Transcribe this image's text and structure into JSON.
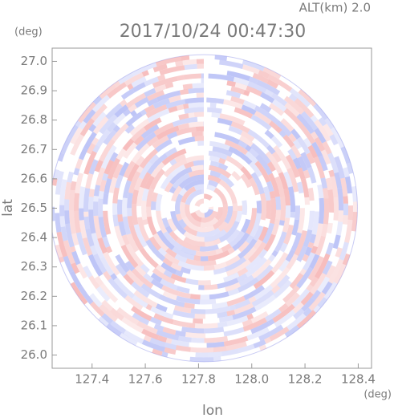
{
  "chart_data": {
    "type": "ppi",
    "title": "2017/10/24 00:47:30",
    "subtitle": "ALT(km) 2.0",
    "x_label": "lon",
    "y_label": "lat",
    "x_unit": "(deg)",
    "y_unit": "(deg)",
    "xlim": [
      127.25,
      128.45
    ],
    "ylim": [
      25.955,
      27.045
    ],
    "xticks": [
      {
        "value": 127.4,
        "label": "127.4"
      },
      {
        "value": 127.6,
        "label": "127.6"
      },
      {
        "value": 127.8,
        "label": "127.8"
      },
      {
        "value": 128.0,
        "label": "128.0"
      },
      {
        "value": 128.2,
        "label": "128.2"
      },
      {
        "value": 128.4,
        "label": "128.4"
      }
    ],
    "yticks": [
      {
        "value": 26.0,
        "label": "26.0"
      },
      26.1,
      26.2,
      26.3,
      26.4,
      26.5,
      26.6,
      26.7,
      26.8,
      26.9,
      {
        "value": 27.0,
        "label": "27.0"
      }
    ],
    "center": [
      127.82,
      26.5
    ],
    "radius": 0.577,
    "colors": [
      "#f29a9a",
      "#9aa4f2"
    ]
  }
}
